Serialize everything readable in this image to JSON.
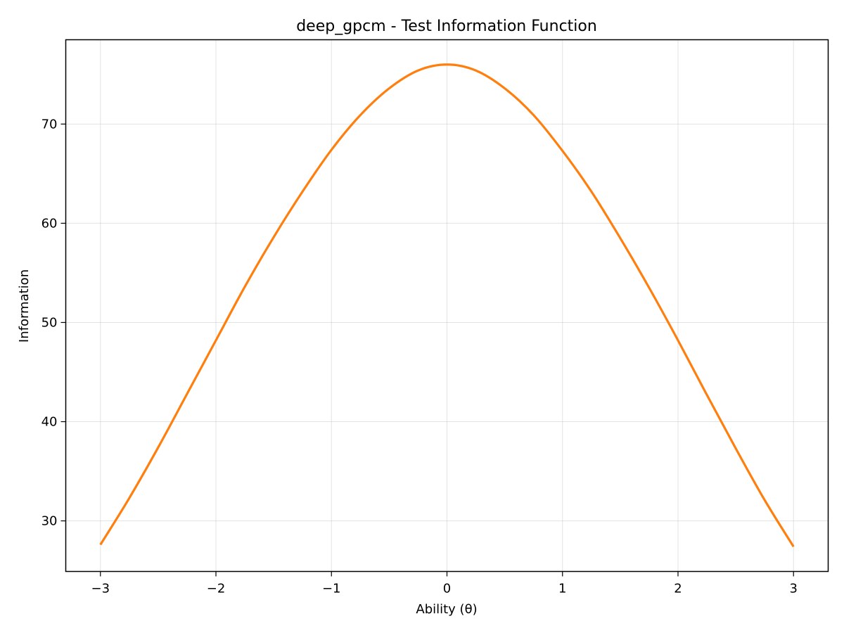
{
  "chart_data": {
    "type": "line",
    "title": "deep_gpcm - Test Information Function",
    "xlabel": "Ability (θ)",
    "ylabel": "Information",
    "xlim": [
      -3.3,
      3.3
    ],
    "ylim": [
      24.9,
      78.5
    ],
    "xticks": [
      -3,
      -2,
      -1,
      0,
      1,
      2,
      3
    ],
    "xtick_labels": [
      "−3",
      "−2",
      "−1",
      "0",
      "1",
      "2",
      "3"
    ],
    "yticks": [
      30,
      40,
      50,
      60,
      70
    ],
    "ytick_labels": [
      "30",
      "40",
      "50",
      "60",
      "70"
    ],
    "grid": true,
    "legend": "none",
    "series": [
      {
        "color": "#ff7f0e",
        "x": [
          -3.0,
          -2.75,
          -2.5,
          -2.25,
          -2.0,
          -1.75,
          -1.5,
          -1.25,
          -1.0,
          -0.75,
          -0.5,
          -0.25,
          0.0,
          0.25,
          0.5,
          0.75,
          1.0,
          1.25,
          1.5,
          1.75,
          2.0,
          2.25,
          2.5,
          2.75,
          3.0
        ],
        "values": [
          27.6,
          32.3,
          37.4,
          42.8,
          48.2,
          53.6,
          58.6,
          63.2,
          67.4,
          70.9,
          73.6,
          75.4,
          76.0,
          75.4,
          73.6,
          70.9,
          67.3,
          63.2,
          58.5,
          53.5,
          48.2,
          42.7,
          37.3,
          32.1,
          27.4
        ]
      }
    ]
  }
}
